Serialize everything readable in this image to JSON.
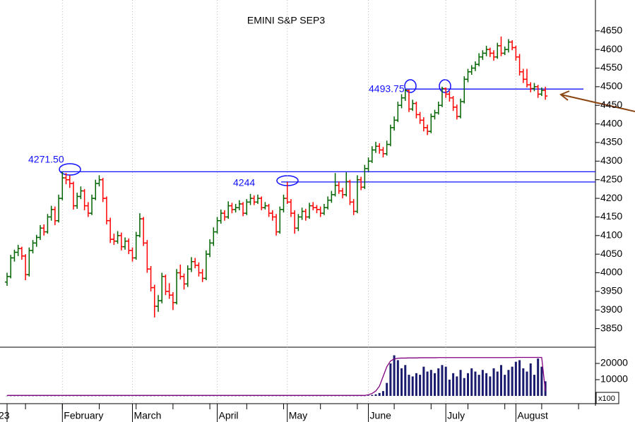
{
  "chart_data": {
    "type": "ohlc",
    "title": "EMINI S&P SEP3",
    "volume_unit": "x100",
    "categories": [
      "23",
      null,
      null,
      null,
      null,
      null,
      null,
      null,
      null,
      null,
      null,
      null,
      null,
      null,
      null,
      "February",
      null,
      null,
      null,
      null,
      null,
      null,
      null,
      null,
      null,
      null,
      null,
      null,
      null,
      null,
      null,
      null,
      null,
      null,
      "March",
      null,
      null,
      null,
      null,
      null,
      null,
      null,
      null,
      null,
      null,
      null,
      null,
      null,
      null,
      null,
      null,
      null,
      null,
      null,
      null,
      null,
      null,
      "April",
      null,
      null,
      null,
      null,
      null,
      null,
      null,
      null,
      null,
      null,
      null,
      null,
      null,
      null,
      null,
      null,
      null,
      null,
      "May",
      null,
      null,
      null,
      null,
      null,
      null,
      null,
      null,
      null,
      null,
      null,
      null,
      null,
      null,
      null,
      null,
      null,
      null,
      null,
      null,
      null,
      "June",
      null,
      null,
      null,
      null,
      null,
      null,
      null,
      null,
      null,
      null,
      null,
      null,
      null,
      null,
      null,
      null,
      null,
      null,
      null,
      null,
      "July",
      null,
      null,
      null,
      null,
      null,
      null,
      null,
      null,
      null,
      null,
      null,
      null,
      null,
      null,
      null,
      null,
      null,
      null,
      "August",
      null,
      null,
      null,
      null,
      null,
      null,
      null,
      null
    ],
    "ohlc": [
      [
        3975,
        4000,
        3965,
        3990
      ],
      [
        3990,
        4048,
        3985,
        4040
      ],
      [
        4040,
        4062,
        4030,
        4055
      ],
      [
        4055,
        4075,
        4045,
        4065
      ],
      [
        4065,
        4070,
        4035,
        4045
      ],
      [
        4045,
        4050,
        3980,
        3995
      ],
      [
        3995,
        4068,
        3990,
        4060
      ],
      [
        4060,
        4088,
        4052,
        4080
      ],
      [
        4080,
        4102,
        4070,
        4095
      ],
      [
        4095,
        4128,
        4088,
        4120
      ],
      [
        4120,
        4130,
        4100,
        4110
      ],
      [
        4110,
        4158,
        4105,
        4150
      ],
      [
        4150,
        4180,
        4140,
        4170
      ],
      [
        4170,
        4178,
        4128,
        4140
      ],
      [
        4140,
        4210,
        4135,
        4200
      ],
      [
        4200,
        4271.5,
        4195,
        4255
      ],
      [
        4255,
        4268,
        4238,
        4250
      ],
      [
        4250,
        4262,
        4228,
        4240
      ],
      [
        4240,
        4245,
        4170,
        4180
      ],
      [
        4180,
        4215,
        4172,
        4205
      ],
      [
        4205,
        4232,
        4198,
        4220
      ],
      [
        4220,
        4225,
        4168,
        4180
      ],
      [
        4180,
        4190,
        4150,
        4160
      ],
      [
        4160,
        4210,
        4155,
        4200
      ],
      [
        4200,
        4250,
        4195,
        4240
      ],
      [
        4240,
        4262,
        4232,
        4250
      ],
      [
        4250,
        4255,
        4190,
        4200
      ],
      [
        4200,
        4205,
        4130,
        4140
      ],
      [
        4140,
        4148,
        4080,
        4090
      ],
      [
        4090,
        4105,
        4075,
        4085
      ],
      [
        4085,
        4112,
        4078,
        4100
      ],
      [
        4100,
        4108,
        4060,
        4070
      ],
      [
        4070,
        4095,
        4062,
        4085
      ],
      [
        4085,
        4092,
        4050,
        4060
      ],
      [
        4060,
        4068,
        4030,
        4040
      ],
      [
        4040,
        4110,
        4035,
        4100
      ],
      [
        4100,
        4160,
        4095,
        4145
      ],
      [
        4145,
        4150,
        4072,
        4080
      ],
      [
        4080,
        4088,
        4000,
        4010
      ],
      [
        4010,
        4018,
        3950,
        3960
      ],
      [
        3960,
        3968,
        3880,
        3910
      ],
      [
        3910,
        3940,
        3895,
        3925
      ],
      [
        3925,
        4000,
        3918,
        3990
      ],
      [
        3990,
        3995,
        3940,
        3950
      ],
      [
        3950,
        3972,
        3930,
        3940
      ],
      [
        3940,
        3948,
        3900,
        3920
      ],
      [
        3920,
        4010,
        3915,
        4000
      ],
      [
        4000,
        4022,
        3982,
        3990
      ],
      [
        3990,
        3998,
        3955,
        3970
      ],
      [
        3970,
        4020,
        3962,
        4010
      ],
      [
        4010,
        4042,
        4002,
        4030
      ],
      [
        4030,
        4040,
        4012,
        4020
      ],
      [
        4020,
        4028,
        3990,
        4000
      ],
      [
        4000,
        4010,
        3975,
        3985
      ],
      [
        3985,
        4060,
        3980,
        4050
      ],
      [
        4050,
        4090,
        4042,
        4080
      ],
      [
        4080,
        4122,
        4072,
        4110
      ],
      [
        4110,
        4150,
        4105,
        4140
      ],
      [
        4140,
        4170,
        4132,
        4160
      ],
      [
        4160,
        4168,
        4140,
        4150
      ],
      [
        4150,
        4192,
        4145,
        4180
      ],
      [
        4180,
        4188,
        4160,
        4170
      ],
      [
        4170,
        4185,
        4162,
        4175
      ],
      [
        4175,
        4195,
        4168,
        4185
      ],
      [
        4185,
        4190,
        4152,
        4160
      ],
      [
        4160,
        4198,
        4155,
        4190
      ],
      [
        4190,
        4212,
        4182,
        4200
      ],
      [
        4200,
        4208,
        4182,
        4190
      ],
      [
        4190,
        4210,
        4185,
        4200
      ],
      [
        4200,
        4205,
        4168,
        4175
      ],
      [
        4175,
        4190,
        4170,
        4180
      ],
      [
        4180,
        4185,
        4150,
        4160
      ],
      [
        4160,
        4168,
        4140,
        4150
      ],
      [
        4150,
        4158,
        4100,
        4110
      ],
      [
        4110,
        4178,
        4105,
        4170
      ],
      [
        4170,
        4210,
        4162,
        4200
      ],
      [
        4200,
        4244,
        4185,
        4190
      ],
      [
        4190,
        4198,
        4150,
        4160
      ],
      [
        4160,
        4168,
        4105,
        4120
      ],
      [
        4120,
        4158,
        4112,
        4150
      ],
      [
        4150,
        4175,
        4142,
        4165
      ],
      [
        4165,
        4172,
        4140,
        4150
      ],
      [
        4150,
        4188,
        4145,
        4180
      ],
      [
        4180,
        4190,
        4168,
        4175
      ],
      [
        4175,
        4182,
        4160,
        4170
      ],
      [
        4170,
        4178,
        4150,
        4160
      ],
      [
        4160,
        4185,
        4155,
        4175
      ],
      [
        4175,
        4205,
        4170,
        4195
      ],
      [
        4195,
        4220,
        4188,
        4210
      ],
      [
        4210,
        4268,
        4205,
        4235
      ],
      [
        4235,
        4245,
        4212,
        4220
      ],
      [
        4220,
        4228,
        4200,
        4210
      ],
      [
        4210,
        4270,
        4205,
        4245
      ],
      [
        4245,
        4250,
        4182,
        4190
      ],
      [
        4190,
        4198,
        4155,
        4165
      ],
      [
        4165,
        4262,
        4160,
        4250
      ],
      [
        4250,
        4258,
        4222,
        4230
      ],
      [
        4230,
        4290,
        4225,
        4280
      ],
      [
        4280,
        4310,
        4272,
        4300
      ],
      [
        4300,
        4340,
        4295,
        4330
      ],
      [
        4330,
        4352,
        4322,
        4340
      ],
      [
        4340,
        4348,
        4320,
        4330
      ],
      [
        4330,
        4338,
        4310,
        4320
      ],
      [
        4320,
        4355,
        4315,
        4345
      ],
      [
        4345,
        4398,
        4340,
        4390
      ],
      [
        4390,
        4420,
        4382,
        4410
      ],
      [
        4410,
        4460,
        4405,
        4450
      ],
      [
        4450,
        4480,
        4442,
        4470
      ],
      [
        4470,
        4493.75,
        4462,
        4490
      ],
      [
        4490,
        4492,
        4432,
        4440
      ],
      [
        4440,
        4465,
        4435,
        4455
      ],
      [
        4455,
        4460,
        4415,
        4425
      ],
      [
        4425,
        4432,
        4400,
        4410
      ],
      [
        4410,
        4418,
        4380,
        4390
      ],
      [
        4390,
        4398,
        4370,
        4380
      ],
      [
        4380,
        4428,
        4375,
        4420
      ],
      [
        4420,
        4438,
        4412,
        4430
      ],
      [
        4430,
        4460,
        4425,
        4450
      ],
      [
        4450,
        4500,
        4445,
        4495
      ],
      [
        4495,
        4498,
        4470,
        4480
      ],
      [
        4480,
        4488,
        4460,
        4470
      ],
      [
        4470,
        4475,
        4435,
        4445
      ],
      [
        4445,
        4452,
        4412,
        4420
      ],
      [
        4420,
        4468,
        4415,
        4460
      ],
      [
        4460,
        4528,
        4455,
        4520
      ],
      [
        4520,
        4548,
        4512,
        4540
      ],
      [
        4540,
        4558,
        4532,
        4550
      ],
      [
        4550,
        4568,
        4542,
        4560
      ],
      [
        4560,
        4590,
        4555,
        4580
      ],
      [
        4580,
        4598,
        4572,
        4590
      ],
      [
        4590,
        4610,
        4582,
        4600
      ],
      [
        4600,
        4605,
        4580,
        4590
      ],
      [
        4590,
        4598,
        4570,
        4580
      ],
      [
        4580,
        4618,
        4575,
        4610
      ],
      [
        4610,
        4635,
        4582,
        4590
      ],
      [
        4590,
        4608,
        4585,
        4600
      ],
      [
        4600,
        4628,
        4592,
        4620
      ],
      [
        4620,
        4625,
        4598,
        4605
      ],
      [
        4605,
        4610,
        4570,
        4580
      ],
      [
        4580,
        4588,
        4530,
        4540
      ],
      [
        4540,
        4548,
        4510,
        4520
      ],
      [
        4520,
        4548,
        4498,
        4505
      ],
      [
        4505,
        4512,
        4485,
        4495
      ],
      [
        4495,
        4510,
        4488,
        4500
      ],
      [
        4500,
        4505,
        4470,
        4480
      ],
      [
        4480,
        4498,
        4475,
        4490
      ],
      [
        4490,
        4500,
        4465,
        4475
      ]
    ],
    "up_color": "#006400",
    "down_color": "#ff0000",
    "ylim": [
      3800,
      4733
    ],
    "yticks": [
      3850,
      3900,
      3950,
      4000,
      4050,
      4100,
      4150,
      4200,
      4250,
      4300,
      4350,
      4400,
      4450,
      4500,
      4550,
      4600,
      4650
    ],
    "levels": [
      {
        "value": 4271.5,
        "label": "4271.50"
      },
      {
        "value": 4244,
        "label": "4244"
      },
      {
        "value": 4493.75,
        "label": "4493.75"
      }
    ],
    "level_color": "#1010ff",
    "volume": {
      "color": "#1a1a6e",
      "values": [
        100,
        100,
        100,
        100,
        100,
        100,
        100,
        100,
        100,
        100,
        100,
        100,
        100,
        100,
        100,
        100,
        100,
        100,
        100,
        100,
        100,
        100,
        100,
        100,
        100,
        100,
        100,
        100,
        100,
        100,
        100,
        100,
        100,
        100,
        100,
        100,
        100,
        100,
        100,
        100,
        100,
        100,
        100,
        100,
        100,
        100,
        100,
        100,
        100,
        100,
        100,
        100,
        100,
        100,
        100,
        100,
        100,
        100,
        100,
        100,
        100,
        100,
        100,
        100,
        100,
        100,
        100,
        100,
        100,
        100,
        100,
        100,
        100,
        100,
        100,
        100,
        100,
        100,
        100,
        100,
        100,
        100,
        100,
        100,
        100,
        100,
        100,
        100,
        100,
        100,
        100,
        100,
        100,
        100,
        100,
        100,
        100,
        100,
        300,
        600,
        1000,
        1800,
        3000,
        8000,
        20000,
        25000,
        22000,
        17000,
        19000,
        13000,
        12000,
        14000,
        13000,
        18000,
        15000,
        16000,
        14000,
        17000,
        19000,
        18000,
        10000,
        14000,
        12000,
        16000,
        11000,
        14000,
        17000,
        15000,
        13000,
        16000,
        14000,
        12000,
        17000,
        15000,
        19000,
        13000,
        16000,
        18000,
        21000,
        22000,
        17000,
        15000,
        20000,
        13000,
        23000,
        18000,
        9000
      ]
    },
    "open_interest": {
      "color": "#800080",
      "values": [
        300,
        300,
        300,
        300,
        300,
        300,
        300,
        300,
        300,
        300,
        300,
        300,
        300,
        300,
        300,
        300,
        300,
        300,
        300,
        300,
        300,
        300,
        300,
        300,
        300,
        300,
        300,
        300,
        300,
        300,
        300,
        300,
        300,
        300,
        300,
        300,
        300,
        300,
        300,
        300,
        300,
        300,
        300,
        300,
        300,
        300,
        300,
        300,
        300,
        300,
        300,
        300,
        300,
        300,
        300,
        300,
        300,
        300,
        300,
        300,
        300,
        300,
        300,
        300,
        300,
        300,
        300,
        300,
        300,
        300,
        300,
        300,
        300,
        300,
        300,
        300,
        300,
        300,
        300,
        300,
        300,
        300,
        300,
        300,
        300,
        300,
        300,
        300,
        300,
        300,
        300,
        300,
        300,
        300,
        300,
        300,
        300,
        300,
        700,
        1500,
        3000,
        6000,
        12000,
        18000,
        21500,
        22800,
        23200,
        23300,
        23300,
        23400,
        23400,
        23400,
        23500,
        23500,
        23500,
        23500,
        23500,
        23600,
        23600,
        23600,
        23600,
        23600,
        23600,
        23600,
        23600,
        23600,
        23600,
        23600,
        23600,
        23600,
        23600,
        23600,
        23600,
        23600,
        23600,
        23600,
        23600,
        23600,
        23700,
        23700,
        23700,
        23700,
        23700,
        23700,
        23700,
        23700,
        3000
      ]
    },
    "y2lim": [
      -3900,
      30000
    ],
    "y2ticks": [
      10000,
      20000
    ]
  }
}
